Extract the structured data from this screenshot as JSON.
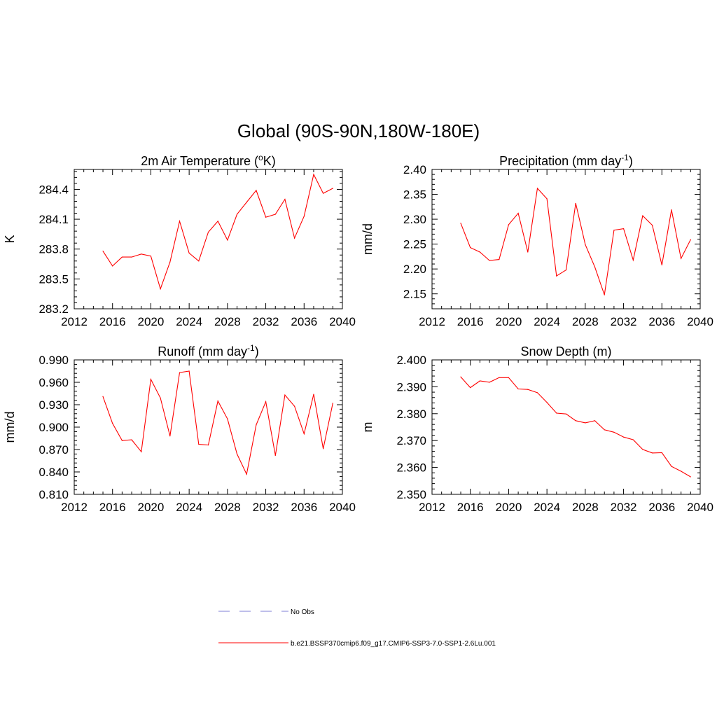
{
  "title": "Global (90S-90N,180W-180E)",
  "colors": {
    "series": "#ff0000",
    "obs": "#9999dd",
    "axis": "#000000"
  },
  "legend": {
    "obs_label": "No Obs",
    "series_label": "b.e21.BSSP370cmip6.f09_g17.CMIP6-SSP3-7.0-SSP1-2.6Lu.001"
  },
  "chart_data": [
    {
      "type": "line",
      "title_main": "2m Air Temperature (",
      "title_sup": "o",
      "title_tail": "K)",
      "ylabel": "K",
      "xlim": [
        2012,
        2040
      ],
      "xticks": [
        "2012",
        "2016",
        "2020",
        "2024",
        "2028",
        "2032",
        "2036",
        "2040"
      ],
      "ylim": [
        283.2,
        284.6
      ],
      "yticks": [
        "283.2",
        "283.5",
        "283.8",
        "284.1",
        "284.4"
      ],
      "x": [
        2015,
        2016,
        2017,
        2018,
        2019,
        2020,
        2021,
        2022,
        2023,
        2024,
        2025,
        2026,
        2027,
        2028,
        2029,
        2030,
        2031,
        2032,
        2033,
        2034,
        2035,
        2036,
        2037,
        2038,
        2039
      ],
      "series": [
        {
          "values": [
            283.78,
            283.63,
            283.72,
            283.72,
            283.75,
            283.73,
            283.4,
            283.67,
            284.08,
            283.76,
            283.68,
            283.97,
            284.08,
            283.89,
            284.15,
            284.27,
            284.39,
            284.12,
            284.15,
            284.3,
            283.91,
            284.13,
            284.55,
            284.36,
            284.41
          ]
        }
      ]
    },
    {
      "type": "line",
      "title_main": "Precipitation (mm day",
      "title_sup": "-1",
      "title_tail": ")",
      "ylabel": "mm/d",
      "xlim": [
        2012,
        2040
      ],
      "xticks": [
        "2012",
        "2016",
        "2020",
        "2024",
        "2028",
        "2032",
        "2036",
        "2040"
      ],
      "ylim": [
        2.12,
        2.4
      ],
      "yticks": [
        "2.15",
        "2.20",
        "2.25",
        "2.30",
        "2.35",
        "2.40"
      ],
      "x": [
        2015,
        2016,
        2017,
        2018,
        2019,
        2020,
        2021,
        2022,
        2023,
        2024,
        2025,
        2026,
        2027,
        2028,
        2029,
        2030,
        2031,
        2032,
        2033,
        2034,
        2035,
        2036,
        2037,
        2038,
        2039
      ],
      "series": [
        {
          "values": [
            2.292,
            2.243,
            2.234,
            2.217,
            2.219,
            2.289,
            2.312,
            2.234,
            2.362,
            2.341,
            2.186,
            2.198,
            2.332,
            2.249,
            2.204,
            2.148,
            2.278,
            2.281,
            2.218,
            2.307,
            2.288,
            2.208,
            2.319,
            2.221,
            2.259
          ]
        }
      ]
    },
    {
      "type": "line",
      "title_main": "Runoff (mm day",
      "title_sup": "-1",
      "title_tail": ")",
      "ylabel": "mm/d",
      "xlim": [
        2012,
        2040
      ],
      "xticks": [
        "2012",
        "2016",
        "2020",
        "2024",
        "2028",
        "2032",
        "2036",
        "2040"
      ],
      "ylim": [
        0.81,
        0.99
      ],
      "yticks": [
        "0.810",
        "0.840",
        "0.870",
        "0.900",
        "0.930",
        "0.960",
        "0.990"
      ],
      "x": [
        2015,
        2016,
        2017,
        2018,
        2019,
        2020,
        2021,
        2022,
        2023,
        2024,
        2025,
        2026,
        2027,
        2028,
        2029,
        2030,
        2031,
        2032,
        2033,
        2034,
        2035,
        2036,
        2037,
        2038,
        2039
      ],
      "series": [
        {
          "values": [
            0.941,
            0.905,
            0.882,
            0.883,
            0.867,
            0.964,
            0.939,
            0.888,
            0.973,
            0.975,
            0.877,
            0.876,
            0.935,
            0.911,
            0.864,
            0.837,
            0.903,
            0.934,
            0.862,
            0.943,
            0.928,
            0.891,
            0.944,
            0.871,
            0.932
          ]
        }
      ]
    },
    {
      "type": "line",
      "title_main": "Snow Depth (m)",
      "title_sup": "",
      "title_tail": "",
      "ylabel": "m",
      "xlim": [
        2012,
        2040
      ],
      "xticks": [
        "2012",
        "2016",
        "2020",
        "2024",
        "2028",
        "2032",
        "2036",
        "2040"
      ],
      "ylim": [
        2.35,
        2.4
      ],
      "yticks": [
        "2.350",
        "2.360",
        "2.370",
        "2.380",
        "2.390",
        "2.400"
      ],
      "x": [
        2015,
        2016,
        2017,
        2018,
        2019,
        2020,
        2021,
        2022,
        2023,
        2024,
        2025,
        2026,
        2027,
        2028,
        2029,
        2030,
        2031,
        2032,
        2033,
        2034,
        2035,
        2036,
        2037,
        2038,
        2039
      ],
      "series": [
        {
          "values": [
            2.3937,
            2.3897,
            2.3922,
            2.3917,
            2.3934,
            2.3934,
            2.3892,
            2.389,
            2.3878,
            2.3842,
            2.3802,
            2.3799,
            2.3774,
            2.3766,
            2.3774,
            2.374,
            2.3731,
            2.3713,
            2.3703,
            2.3667,
            2.3654,
            2.3655,
            2.3604,
            2.3586,
            2.3565
          ]
        }
      ]
    }
  ]
}
